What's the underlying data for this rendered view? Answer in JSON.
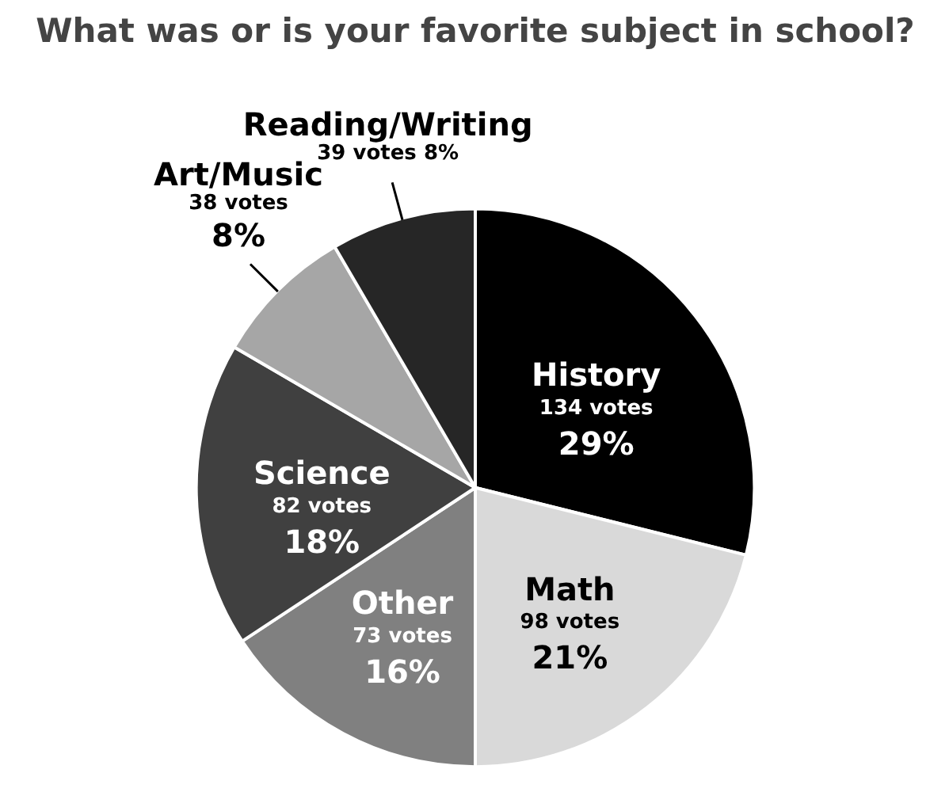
{
  "chart_data": {
    "type": "pie",
    "title": "What was or is your favorite subject in school?",
    "categories": [
      "History",
      "Math",
      "Other",
      "Science",
      "Art/Music",
      "Reading/Writing"
    ],
    "values": [
      134,
      98,
      73,
      82,
      38,
      39
    ],
    "value_labels": [
      "134 votes\n29%",
      "98 votes\n21%",
      "73 votes\n16%",
      "82 votes\n18%",
      "38 votes\n8%",
      "39 votes 8%"
    ],
    "colors": [
      "#000000",
      "#d9d9d9",
      "#808080",
      "#404040",
      "#a6a6a6",
      "#262626"
    ]
  }
}
